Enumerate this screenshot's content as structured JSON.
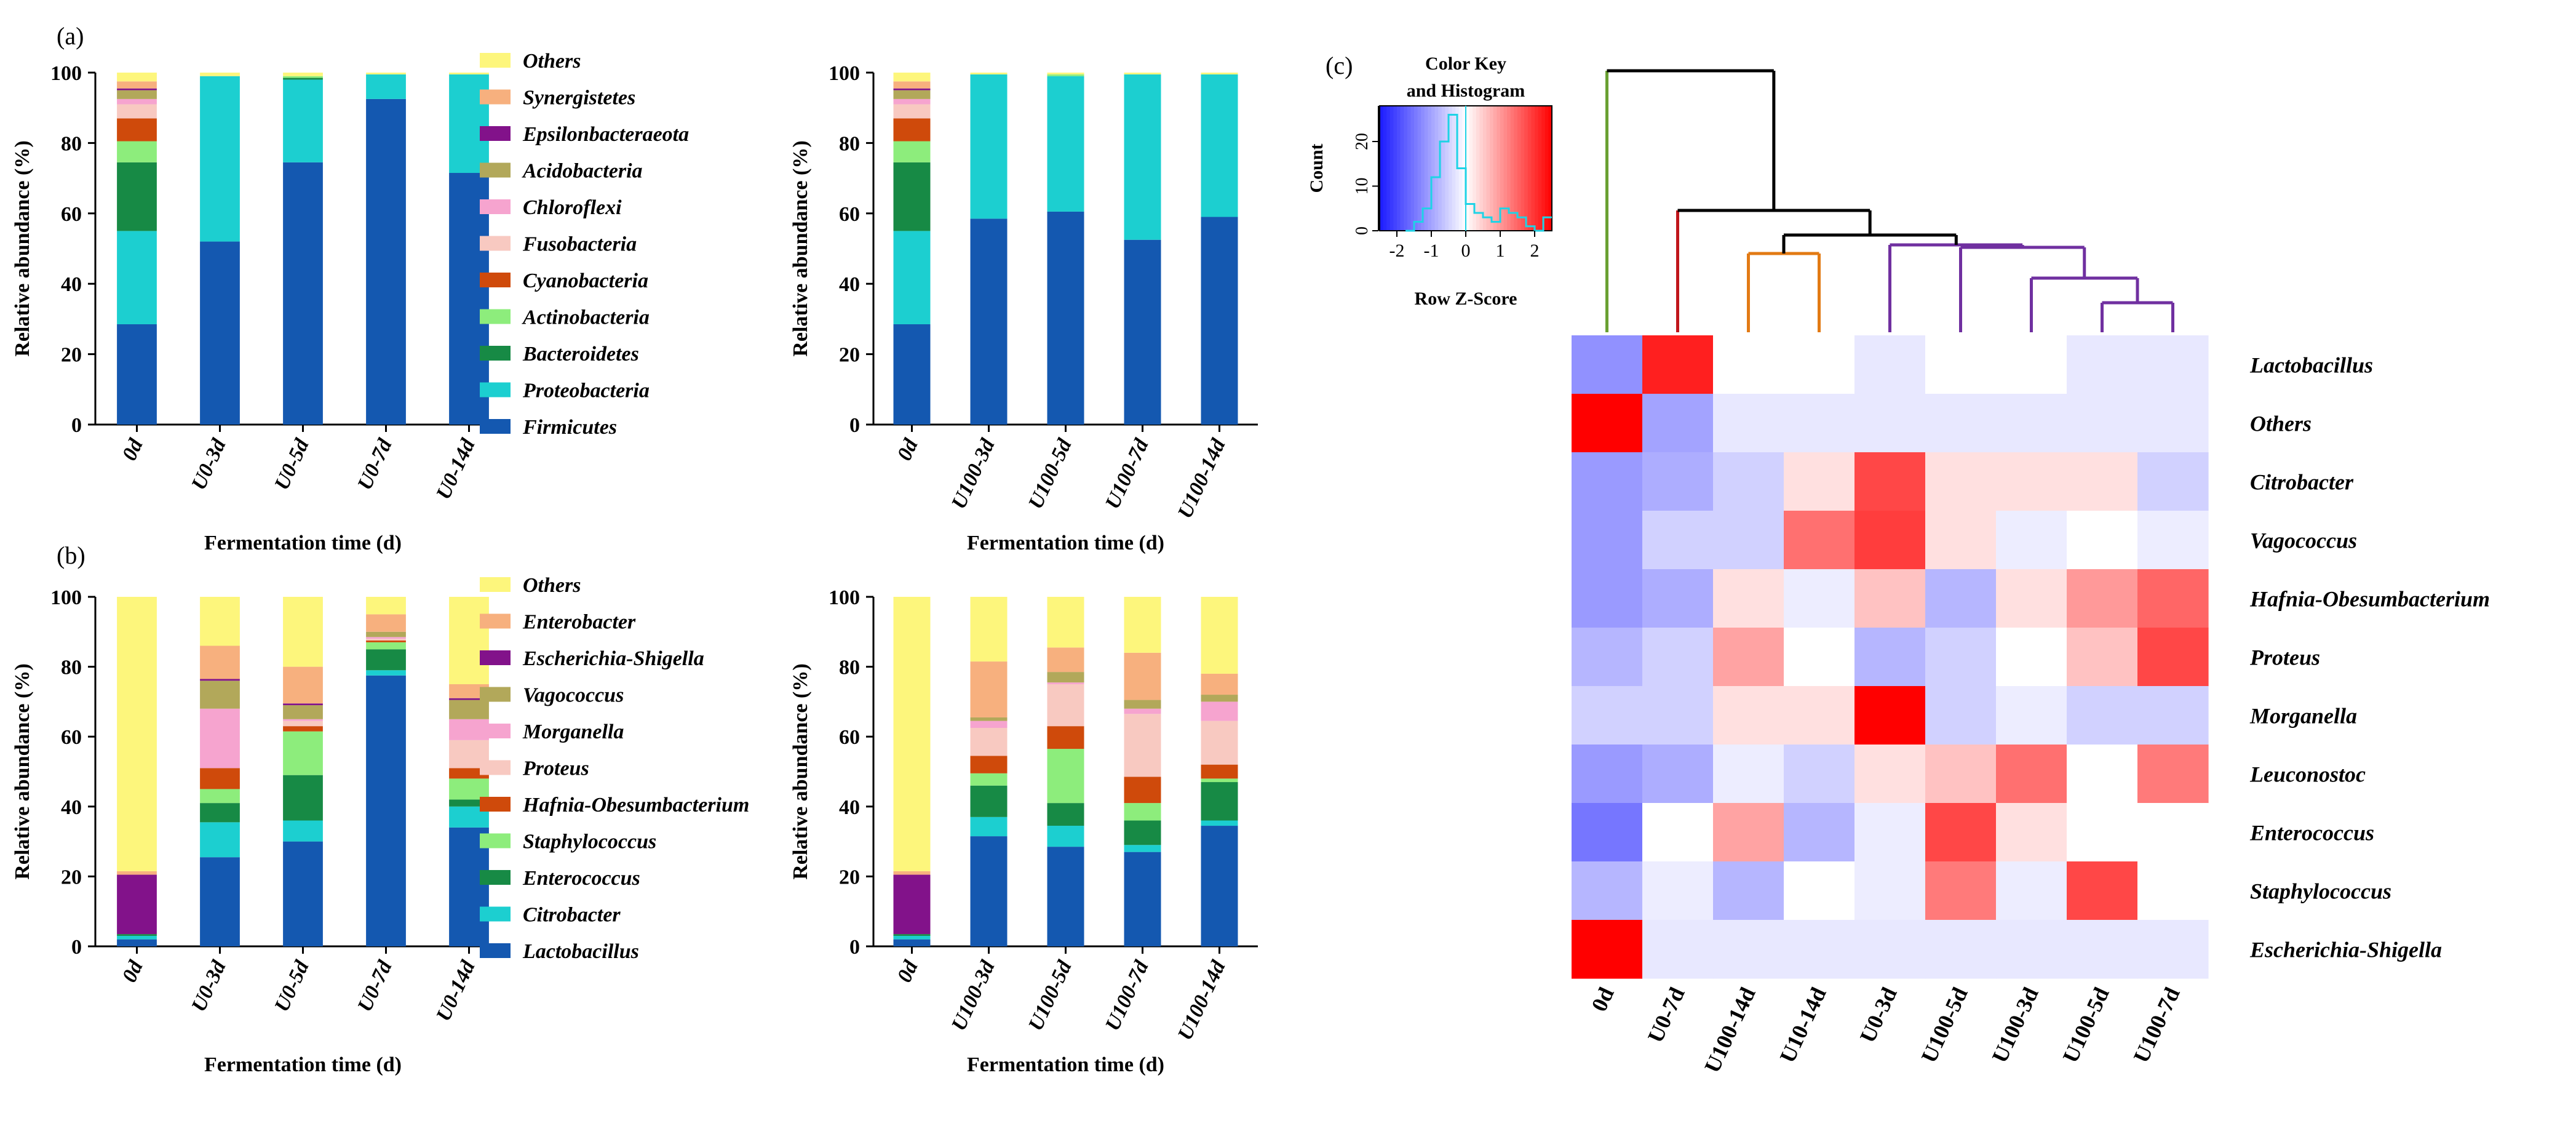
{
  "panel_labels": {
    "a": "(a)",
    "b": "(b)",
    "c": "(c)"
  },
  "colors": {
    "phylum": {
      "Firmicutes": "#1458b0",
      "Proteobacteria": "#1ccfd0",
      "Bacteroidetes": "#178a45",
      "Actinobacteria": "#8ded7c",
      "Cyanobacteria": "#cf4a0b",
      "Fusobacteria": "#f8c9c1",
      "Chloroflexi": "#f6a4cf",
      "Acidobacteria": "#b2a85a",
      "Epsilonbacteraeota": "#82128a",
      "Synergistetes": "#f7b07e",
      "Others": "#fdf67c"
    },
    "genus": {
      "Lactobacillus": "#1458b0",
      "Citrobacter": "#1ccfd0",
      "Enterococcus": "#178a45",
      "Staphylococcus": "#8ded7c",
      "Hafnia-Obesumbacterium": "#cf4a0b",
      "Proteus": "#f8c9c1",
      "Morganella": "#f6a4cf",
      "Vagococcus": "#b2a85a",
      "Escherichia-Shigella": "#82128a",
      "Enterobacter": "#f7b07e",
      "Others": "#fdf67c"
    },
    "heat": {
      "low": "#1a1aff",
      "mid": "#ffffff",
      "high": "#ff0000"
    },
    "tree": {
      "green": "#6aa032",
      "red": "#c0161c",
      "orange": "#e27a14",
      "purple": "#7030a0",
      "black": "#000000"
    }
  },
  "chart_data": [
    {
      "id": "a-left",
      "type": "bar",
      "stacked": true,
      "title": "(a)",
      "xlabel": "Fermentation time (d)",
      "ylabel": "Relative abundance (%)",
      "ylim": [
        0,
        100
      ],
      "yticks": [
        "0",
        "20",
        "40",
        "60",
        "80",
        "100"
      ],
      "categories": [
        "0d",
        "U0-3d",
        "U0-5d",
        "U0-7d",
        "U0-14d"
      ],
      "series": [
        {
          "name": "Firmicutes",
          "values": [
            28.5,
            52,
            74.5,
            92.5,
            71.5
          ]
        },
        {
          "name": "Proteobacteria",
          "values": [
            26.5,
            47,
            23.5,
            7,
            28
          ]
        },
        {
          "name": "Bacteroidetes",
          "values": [
            19.5,
            0,
            0.5,
            0,
            0
          ]
        },
        {
          "name": "Actinobacteria",
          "values": [
            6,
            0,
            0.5,
            0,
            0
          ]
        },
        {
          "name": "Cyanobacteria",
          "values": [
            6.5,
            0,
            0,
            0,
            0
          ]
        },
        {
          "name": "Fusobacteria",
          "values": [
            4,
            0,
            0,
            0,
            0
          ]
        },
        {
          "name": "Chloroflexi",
          "values": [
            1.5,
            0,
            0,
            0,
            0
          ]
        },
        {
          "name": "Acidobacteria",
          "values": [
            2.5,
            0,
            0,
            0,
            0
          ]
        },
        {
          "name": "Epsilonbacteraeota",
          "values": [
            0.5,
            0,
            0,
            0,
            0
          ]
        },
        {
          "name": "Synergistetes",
          "values": [
            2,
            0,
            0,
            0,
            0
          ]
        },
        {
          "name": "Others",
          "values": [
            2.5,
            1,
            1,
            0.5,
            0.5
          ]
        }
      ]
    },
    {
      "id": "a-right",
      "type": "bar",
      "stacked": true,
      "xlabel": "Fermentation time (d)",
      "ylabel": "Relative abundance (%)",
      "ylim": [
        0,
        100
      ],
      "yticks": [
        "0",
        "20",
        "40",
        "60",
        "80",
        "100"
      ],
      "categories": [
        "0d",
        "U100-3d",
        "U100-5d",
        "U100-7d",
        "U100-14d"
      ],
      "series": [
        {
          "name": "Firmicutes",
          "values": [
            28.5,
            58.5,
            60.5,
            52.5,
            59
          ]
        },
        {
          "name": "Proteobacteria",
          "values": [
            26.5,
            41,
            38.5,
            47,
            40.5
          ]
        },
        {
          "name": "Bacteroidetes",
          "values": [
            19.5,
            0,
            0,
            0,
            0
          ]
        },
        {
          "name": "Actinobacteria",
          "values": [
            6,
            0,
            0.5,
            0,
            0
          ]
        },
        {
          "name": "Cyanobacteria",
          "values": [
            6.5,
            0,
            0,
            0,
            0
          ]
        },
        {
          "name": "Fusobacteria",
          "values": [
            4,
            0,
            0,
            0,
            0
          ]
        },
        {
          "name": "Chloroflexi",
          "values": [
            1.5,
            0,
            0,
            0,
            0
          ]
        },
        {
          "name": "Acidobacteria",
          "values": [
            2.5,
            0,
            0,
            0,
            0
          ]
        },
        {
          "name": "Epsilonbacteraeota",
          "values": [
            0.5,
            0,
            0,
            0,
            0
          ]
        },
        {
          "name": "Synergistetes",
          "values": [
            2,
            0,
            0,
            0,
            0
          ]
        },
        {
          "name": "Others",
          "values": [
            2.5,
            0.5,
            0.5,
            0.5,
            0.5
          ]
        }
      ]
    },
    {
      "id": "b-left",
      "type": "bar",
      "stacked": true,
      "title": "(b)",
      "xlabel": "Fermentation time (d)",
      "ylabel": "Relative abundance (%)",
      "ylim": [
        0,
        100
      ],
      "yticks": [
        "0",
        "20",
        "40",
        "60",
        "80",
        "100"
      ],
      "categories": [
        "0d",
        "U0-3d",
        "U0-5d",
        "U0-7d",
        "U0-14d"
      ],
      "series": [
        {
          "name": "Lactobacillus",
          "values": [
            2,
            25.5,
            30,
            77.5,
            34
          ]
        },
        {
          "name": "Citrobacter",
          "values": [
            1,
            10,
            6,
            1.5,
            6
          ]
        },
        {
          "name": "Enterococcus",
          "values": [
            0.5,
            5.5,
            13,
            6,
            2
          ]
        },
        {
          "name": "Staphylococcus",
          "values": [
            0,
            4,
            12.5,
            2,
            6
          ]
        },
        {
          "name": "Hafnia-Obesumbacterium",
          "values": [
            0,
            6,
            1.5,
            0.5,
            3
          ]
        },
        {
          "name": "Proteus",
          "values": [
            0,
            0,
            1.5,
            0.5,
            8
          ]
        },
        {
          "name": "Morganella",
          "values": [
            0,
            17,
            0.5,
            0.5,
            6
          ]
        },
        {
          "name": "Vagococcus",
          "values": [
            0,
            8,
            4,
            1.5,
            5.5
          ]
        },
        {
          "name": "Escherichia-Shigella",
          "values": [
            17,
            0.5,
            0.5,
            0,
            0.5
          ]
        },
        {
          "name": "Enterobacter",
          "values": [
            1,
            9.5,
            10.5,
            5,
            4
          ]
        },
        {
          "name": "Others",
          "values": [
            78.5,
            14,
            20,
            5,
            25
          ]
        }
      ]
    },
    {
      "id": "b-right",
      "type": "bar",
      "stacked": true,
      "xlabel": "Fermentation time (d)",
      "ylabel": "Relative abundance (%)",
      "ylim": [
        0,
        100
      ],
      "yticks": [
        "0",
        "20",
        "40",
        "60",
        "80",
        "100"
      ],
      "categories": [
        "0d",
        "U100-3d",
        "U100-5d",
        "U100-7d",
        "U100-14d"
      ],
      "series": [
        {
          "name": "Lactobacillus",
          "values": [
            2,
            31.5,
            28.5,
            27,
            34.5
          ]
        },
        {
          "name": "Citrobacter",
          "values": [
            1,
            5.5,
            6,
            2,
            1.5
          ]
        },
        {
          "name": "Enterococcus",
          "values": [
            0.5,
            9,
            6.5,
            7,
            11
          ]
        },
        {
          "name": "Staphylococcus",
          "values": [
            0,
            3.5,
            15.5,
            5,
            1
          ]
        },
        {
          "name": "Hafnia-Obesumbacterium",
          "values": [
            0,
            5,
            6.5,
            7.5,
            4
          ]
        },
        {
          "name": "Proteus",
          "values": [
            0,
            8,
            12,
            18,
            12.5
          ]
        },
        {
          "name": "Morganella",
          "values": [
            0,
            2,
            0.5,
            1.5,
            5.5
          ]
        },
        {
          "name": "Vagococcus",
          "values": [
            0,
            1,
            3,
            2.5,
            2
          ]
        },
        {
          "name": "Escherichia-Shigella",
          "values": [
            17,
            0,
            0,
            0,
            0
          ]
        },
        {
          "name": "Enterobacter",
          "values": [
            1,
            16,
            7,
            13.5,
            6
          ]
        },
        {
          "name": "Others",
          "values": [
            78.5,
            18.5,
            14.5,
            16,
            22
          ]
        }
      ]
    },
    {
      "id": "c-heatmap",
      "type": "heatmap",
      "title": "(c)",
      "columns": [
        "0d",
        "U0-7d",
        "U100-14d",
        "U10-14d",
        "U0-3d",
        "U100-5d",
        "U100-3d",
        "U100-5d",
        "U100-7d"
      ],
      "rows": [
        "Lactobacillus",
        "Others",
        "Citrobacter",
        "Vagococcus",
        "Hafnia-Obesumbacterium",
        "Proteus",
        "Morganella",
        "Leuconostoc",
        "Enterococcus",
        "Staphylococcus",
        "Escherichia-Shigella"
      ],
      "values": [
        [
          -1.2,
          2.2,
          0.0,
          0.0,
          -0.25,
          0.0,
          0.0,
          -0.25,
          -0.25
        ],
        [
          2.5,
          -1.0,
          -0.25,
          -0.25,
          -0.25,
          -0.25,
          -0.25,
          -0.25,
          -0.25
        ],
        [
          -1.1,
          -0.9,
          -0.5,
          0.3,
          1.8,
          0.3,
          0.3,
          0.3,
          -0.5
        ],
        [
          -1.1,
          -0.5,
          -0.5,
          1.4,
          1.9,
          0.3,
          -0.2,
          0.0,
          -0.2
        ],
        [
          -1.1,
          -0.9,
          0.3,
          -0.2,
          0.6,
          -0.8,
          0.3,
          1.0,
          1.5
        ],
        [
          -0.8,
          -0.5,
          0.9,
          0.0,
          -0.8,
          -0.5,
          0.0,
          0.6,
          1.8
        ],
        [
          -0.5,
          -0.5,
          0.3,
          0.3,
          2.5,
          -0.5,
          -0.2,
          -0.5,
          -0.5
        ],
        [
          -1.1,
          -0.9,
          -0.2,
          -0.5,
          0.3,
          0.6,
          1.4,
          0.0,
          1.3
        ],
        [
          -1.5,
          0.0,
          0.9,
          -0.8,
          -0.2,
          1.8,
          0.3,
          0.0,
          0.0
        ],
        [
          -0.8,
          -0.2,
          -0.8,
          0.0,
          -0.2,
          1.3,
          -0.2,
          1.8,
          0.0
        ],
        [
          2.5,
          -0.25,
          -0.25,
          -0.25,
          -0.25,
          -0.25,
          -0.25,
          -0.25,
          -0.25
        ]
      ],
      "color_key": {
        "title_line1": "Color Key",
        "title_line2": "and Histogram",
        "ylabel": "Count",
        "xlabel": "Row Z-Score",
        "xticks": [
          "-2",
          "-1",
          "0",
          "1",
          "2"
        ],
        "xtick_values": [
          -2,
          -1,
          0,
          1,
          2
        ],
        "yticks": [
          "0",
          "10",
          "20"
        ],
        "ytick_values": [
          0,
          10,
          20
        ],
        "range": [
          -2.5,
          2.5
        ],
        "count_max": 28,
        "histogram": [
          [
            -1.75,
            0
          ],
          [
            -1.5,
            2
          ],
          [
            -1.25,
            5
          ],
          [
            -1.0,
            12
          ],
          [
            -0.75,
            20
          ],
          [
            -0.5,
            26
          ],
          [
            -0.25,
            14
          ],
          [
            0.0,
            6
          ],
          [
            0.25,
            4
          ],
          [
            0.5,
            3
          ],
          [
            0.75,
            2
          ],
          [
            1.0,
            5
          ],
          [
            1.25,
            4
          ],
          [
            1.5,
            3
          ],
          [
            1.75,
            1
          ],
          [
            2.0,
            0
          ],
          [
            2.25,
            3
          ],
          [
            2.5,
            3
          ]
        ]
      }
    }
  ]
}
